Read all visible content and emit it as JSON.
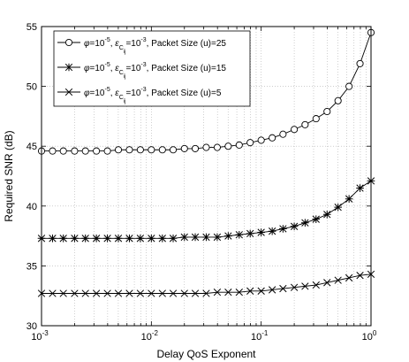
{
  "chart_data": {
    "type": "line",
    "title": "",
    "xlabel": "Delay QoS Exponent",
    "ylabel": "Required SNR (dB)",
    "xscale": "log",
    "xlim": [
      0.001,
      1
    ],
    "ylim": [
      30,
      55
    ],
    "grid": "dotted",
    "legend_position": "top-left",
    "x_ticks": [
      {
        "value": 0.001,
        "base": "10",
        "exp": "-3"
      },
      {
        "value": 0.01,
        "base": "10",
        "exp": "-2"
      },
      {
        "value": 0.1,
        "base": "10",
        "exp": "-1"
      },
      {
        "value": 1,
        "base": "10",
        "exp": "0"
      }
    ],
    "y_ticks": [
      "30",
      "35",
      "40",
      "45",
      "50",
      "55"
    ],
    "x": [
      0.001,
      0.00126,
      0.00158,
      0.002,
      0.00251,
      0.00316,
      0.00398,
      0.00501,
      0.00631,
      0.00794,
      0.01,
      0.0126,
      0.0158,
      0.02,
      0.0251,
      0.0316,
      0.0398,
      0.0501,
      0.0631,
      0.0794,
      0.1,
      0.126,
      0.158,
      0.2,
      0.251,
      0.316,
      0.398,
      0.501,
      0.631,
      0.794,
      1.0
    ],
    "series": [
      {
        "name": "φ=10^-5, ε_Cij=10^-3, Packet Size (u)=25",
        "marker": "circle",
        "values": [
          44.6,
          44.6,
          44.6,
          44.6,
          44.6,
          44.6,
          44.6,
          44.7,
          44.7,
          44.7,
          44.7,
          44.7,
          44.7,
          44.8,
          44.8,
          44.9,
          44.9,
          45.0,
          45.1,
          45.3,
          45.5,
          45.7,
          46.0,
          46.4,
          46.8,
          47.3,
          47.9,
          48.8,
          50.0,
          51.9,
          54.5
        ]
      },
      {
        "name": "φ=10^-5, ε_Cij=10^-3, Packet Size (u)=15",
        "marker": "asterisk",
        "values": [
          37.3,
          37.3,
          37.3,
          37.3,
          37.3,
          37.3,
          37.3,
          37.3,
          37.3,
          37.3,
          37.3,
          37.3,
          37.3,
          37.4,
          37.4,
          37.4,
          37.4,
          37.5,
          37.6,
          37.7,
          37.8,
          37.9,
          38.1,
          38.3,
          38.6,
          38.9,
          39.3,
          39.9,
          40.6,
          41.5,
          42.1
        ]
      },
      {
        "name": "φ=10^-5, ε_Cij=10^-3, Packet Size (u)=5",
        "marker": "x",
        "values": [
          32.7,
          32.7,
          32.7,
          32.7,
          32.7,
          32.7,
          32.7,
          32.7,
          32.7,
          32.7,
          32.7,
          32.7,
          32.7,
          32.7,
          32.7,
          32.7,
          32.8,
          32.8,
          32.8,
          32.9,
          32.9,
          33.0,
          33.1,
          33.2,
          33.3,
          33.4,
          33.6,
          33.8,
          34.0,
          34.2,
          34.3
        ]
      }
    ],
    "legend": [
      {
        "phi_sym": "φ",
        "phi_exp": "-5",
        "eps_sym": "ε",
        "eps_sub": "C",
        "eps_subsub": "ij",
        "eps_exp": "-3",
        "rest": ", Packet Size (u)=25"
      },
      {
        "phi_sym": "φ",
        "phi_exp": "-5",
        "eps_sym": "ε",
        "eps_sub": "C",
        "eps_subsub": "ij",
        "eps_exp": "-3",
        "rest": ", Packet Size (u)=15"
      },
      {
        "phi_sym": "φ",
        "phi_exp": "-5",
        "eps_sym": "ε",
        "eps_sub": "C",
        "eps_subsub": "ij",
        "eps_exp": "-3",
        "rest": ", Packet Size (u)=5"
      }
    ],
    "colors": {
      "line": "#000000",
      "grid": "#b0b0b0",
      "background": "#ffffff"
    }
  }
}
